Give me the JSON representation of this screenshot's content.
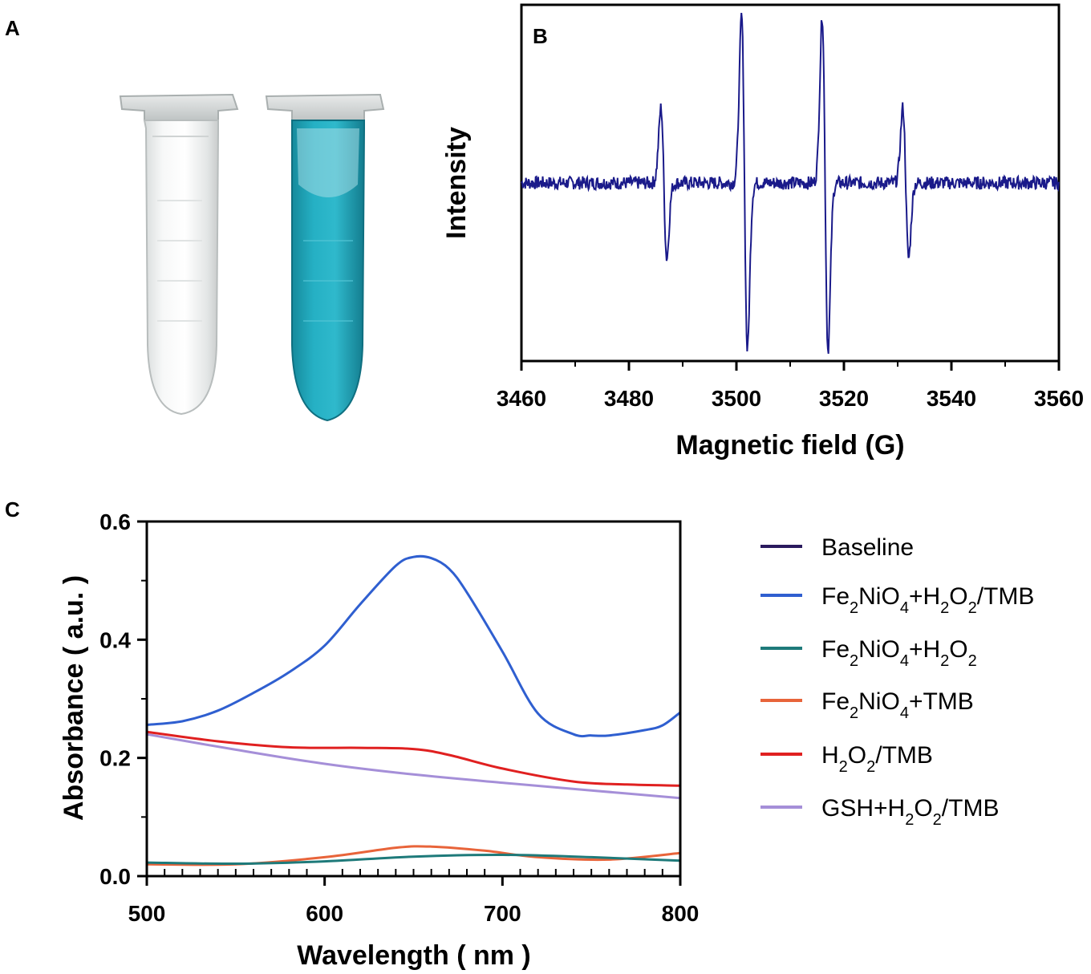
{
  "panels": {
    "a": "A",
    "b": "B",
    "c": "C"
  },
  "photo": {
    "tubes": [
      {
        "name": "clear-tube",
        "liquid_color": "#f2f4f4"
      },
      {
        "name": "blue-tube",
        "liquid_color": "#1fa3b8"
      }
    ]
  },
  "chart_data": [
    {
      "panel": "B",
      "type": "line",
      "title": "",
      "xlabel": "Magnetic field (G)",
      "ylabel": "Intensity",
      "xlim": [
        3460,
        3560
      ],
      "x_ticks": [
        "3460",
        "3480",
        "3500",
        "3520",
        "3540",
        "3560"
      ],
      "y_ticks_shown": false,
      "ylim": [
        -3.2,
        3.2
      ],
      "baseline": 0,
      "noise_amplitude": 0.12,
      "color": "#1a1a8a",
      "series": [
        {
          "values_description": "quartet",
          "peaks": [
            {
              "center": 3486.5,
              "amplitude": 1.35
            },
            {
              "center": 3501.5,
              "amplitude": 3.0
            },
            {
              "center": 3516.5,
              "amplitude": 3.0
            },
            {
              "center": 3531.5,
              "amplitude": 1.35
            }
          ]
        }
      ],
      "grid": false
    },
    {
      "panel": "C",
      "type": "line",
      "title": "",
      "xlabel": "Wavelength ( nm )",
      "ylabel": "Absorbance ( a.u. )",
      "xlim": [
        500,
        800
      ],
      "ylim": [
        0,
        0.6
      ],
      "x_ticks": [
        "500",
        "600",
        "700",
        "800"
      ],
      "y_ticks": [
        "0.0",
        "0.2",
        "0.4",
        "0.6"
      ],
      "grid": false,
      "legend_position": "right",
      "series": [
        {
          "name": "Baseline",
          "name_parts": [
            "Baseline"
          ],
          "color": "#2a1a5e",
          "x": [
            500,
            800
          ],
          "y": [
            0.0,
            0.0
          ]
        },
        {
          "name": "Fe2NiO4+H2O2/TMB",
          "name_parts": [
            "Fe",
            "2",
            "NiO",
            "4",
            "+H",
            "2",
            "O",
            "2",
            "/TMB"
          ],
          "color": "#2f5fd0",
          "x": [
            500,
            520,
            540,
            560,
            580,
            600,
            620,
            640,
            650,
            660,
            670,
            680,
            700,
            720,
            740,
            750,
            760,
            780,
            790,
            800
          ],
          "y": [
            0.256,
            0.262,
            0.28,
            0.31,
            0.345,
            0.39,
            0.46,
            0.525,
            0.54,
            0.538,
            0.52,
            0.48,
            0.38,
            0.275,
            0.24,
            0.238,
            0.238,
            0.247,
            0.255,
            0.277
          ]
        },
        {
          "name": "Fe2NiO4+H2O2",
          "name_parts": [
            "Fe",
            "2",
            "NiO",
            "4",
            "+H",
            "2",
            "O",
            "2"
          ],
          "color": "#1e7a7a",
          "x": [
            500,
            550,
            600,
            650,
            700,
            750,
            800
          ],
          "y": [
            0.023,
            0.021,
            0.025,
            0.033,
            0.036,
            0.032,
            0.026
          ]
        },
        {
          "name": "Fe2NiO4+TMB",
          "name_parts": [
            "Fe",
            "2",
            "NiO",
            "4",
            "+TMB"
          ],
          "color": "#e8643a",
          "x": [
            500,
            550,
            600,
            640,
            660,
            690,
            720,
            760,
            800
          ],
          "y": [
            0.02,
            0.02,
            0.032,
            0.048,
            0.05,
            0.043,
            0.032,
            0.028,
            0.039
          ]
        },
        {
          "name": "H2O2/TMB",
          "name_parts": [
            "H",
            "2",
            "O",
            "2",
            "/TMB"
          ],
          "color": "#e02020",
          "x": [
            500,
            540,
            580,
            620,
            650,
            670,
            700,
            740,
            770,
            800
          ],
          "y": [
            0.244,
            0.228,
            0.218,
            0.217,
            0.215,
            0.205,
            0.182,
            0.16,
            0.155,
            0.153
          ]
        },
        {
          "name": "GSH+H2O2/TMB",
          "name_parts": [
            "GSH+H",
            "2",
            "O",
            "2",
            "/TMB"
          ],
          "color": "#a58fd8",
          "x": [
            500,
            550,
            600,
            650,
            700,
            750,
            800
          ],
          "y": [
            0.24,
            0.214,
            0.19,
            0.172,
            0.158,
            0.145,
            0.132
          ]
        }
      ]
    }
  ]
}
